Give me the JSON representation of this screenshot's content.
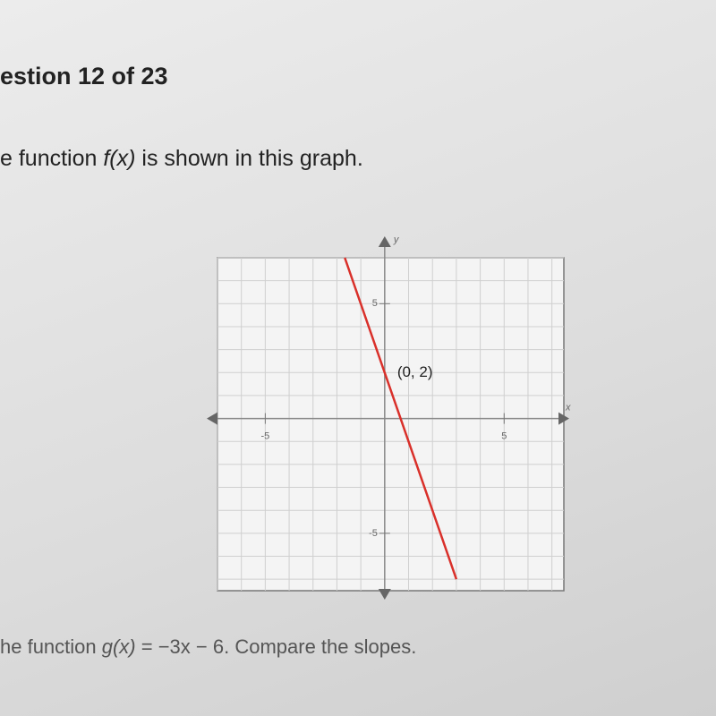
{
  "header": {
    "question": "estion 12 of 23"
  },
  "prompt": {
    "before": "e function ",
    "fx": "f(x)",
    "after": " is shown in this graph."
  },
  "chart_data": {
    "type": "line",
    "x_label": "x",
    "y_label": "y",
    "x": [
      -1.67,
      3
    ],
    "series": [
      {
        "values": [
          7,
          -7
        ],
        "color": "#d9302a"
      }
    ],
    "xlim": [
      -7,
      7.5
    ],
    "ylim": [
      -7.5,
      7
    ],
    "xticks": [
      -5,
      5
    ],
    "yticks": [
      5,
      -5
    ],
    "grid": true,
    "grid_step": 1,
    "annotation": {
      "text": "(0, 2)",
      "x": 0,
      "y": 2
    }
  },
  "footer": {
    "before": "he function ",
    "gx": "g(x)",
    "after": " = −3x − 6. Compare the slopes."
  }
}
